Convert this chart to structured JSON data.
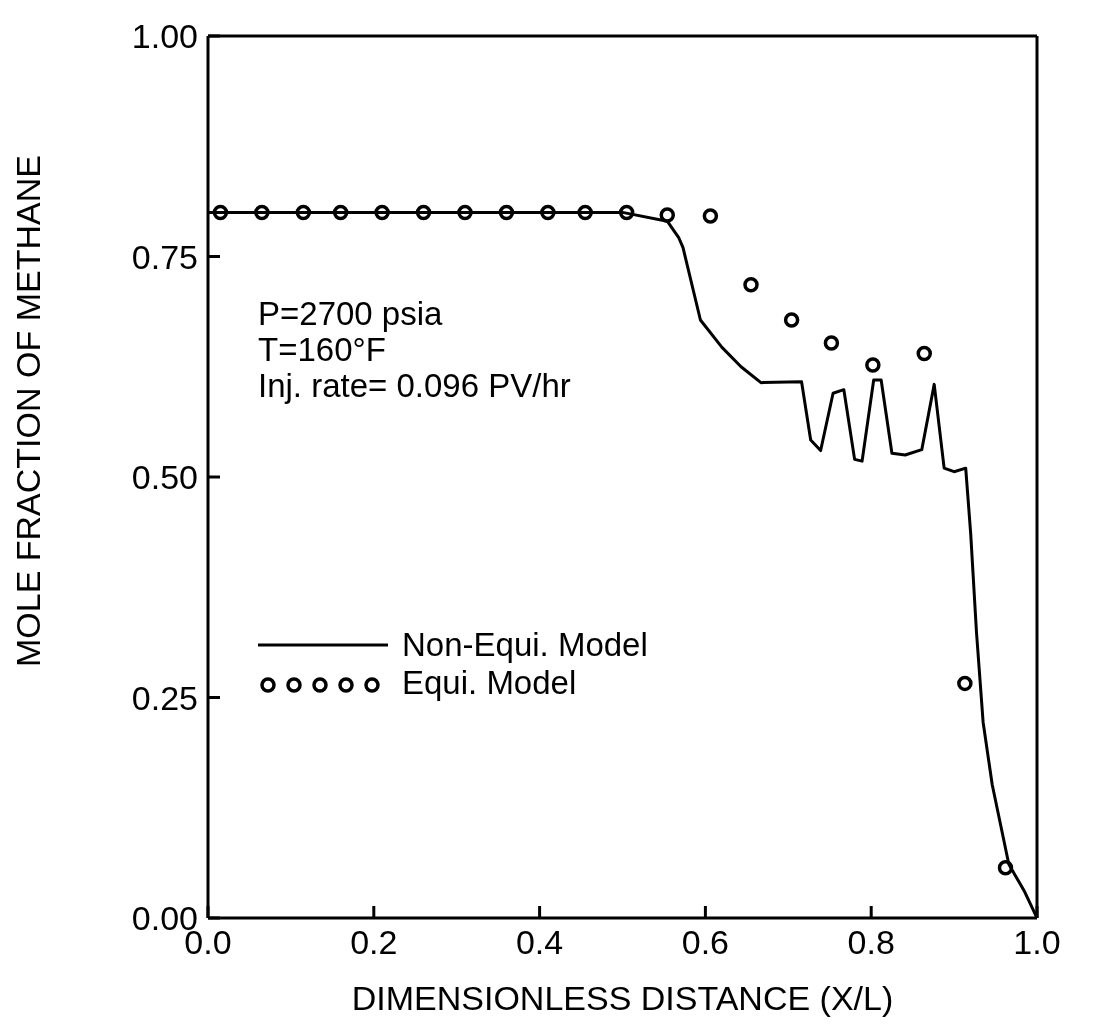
{
  "chart_data": {
    "type": "line",
    "xlabel": "DIMENSIONLESS DISTANCE (X/L)",
    "ylabel": "MOLE FRACTION OF METHANE",
    "xlim": [
      0,
      1
    ],
    "ylim": [
      0,
      1
    ],
    "xticks": [
      {
        "value": 0,
        "label": "0.0"
      },
      {
        "value": 0.2,
        "label": "0.2"
      },
      {
        "value": 0.4,
        "label": "0.4"
      },
      {
        "value": 0.6,
        "label": "0.6"
      },
      {
        "value": 0.8,
        "label": "0.8"
      },
      {
        "value": 1,
        "label": "1.0"
      }
    ],
    "yticks": [
      {
        "value": 0,
        "label": "0.00"
      },
      {
        "value": 0.25,
        "label": "0.25"
      },
      {
        "value": 0.5,
        "label": "0.50"
      },
      {
        "value": 0.75,
        "label": "0.75"
      },
      {
        "value": 1,
        "label": "1.00"
      }
    ],
    "grid": false,
    "legend": "bottom left",
    "annotations": [
      "P=2700 psia",
      "T=160°F",
      "Inj. rate= 0.096 PV/hr"
    ],
    "series": [
      {
        "name": "Non-Equi. Model",
        "color": "#000000",
        "marker": "none",
        "line_style": "solid",
        "x": [
          0,
          0.1,
          0.2,
          0.3,
          0.4,
          0.5,
          0.554,
          0.568,
          0.573,
          0.594,
          0.62,
          0.643,
          0.667,
          0.716,
          0.727,
          0.739,
          0.754,
          0.767,
          0.78,
          0.789,
          0.803,
          0.812,
          0.825,
          0.841,
          0.861,
          0.876,
          0.888,
          0.9,
          0.914,
          0.92,
          0.927,
          0.935,
          0.946,
          0.966,
          0.985,
          1.0
        ],
        "values": [
          0.8,
          0.8,
          0.8,
          0.8,
          0.8,
          0.8,
          0.79,
          0.771,
          0.76,
          0.678,
          0.647,
          0.625,
          0.607,
          0.608,
          0.542,
          0.53,
          0.595,
          0.599,
          0.52,
          0.518,
          0.61,
          0.61,
          0.527,
          0.525,
          0.531,
          0.605,
          0.51,
          0.506,
          0.51,
          0.436,
          0.324,
          0.222,
          0.151,
          0.061,
          0.03,
          0.0
        ]
      },
      {
        "name": "Equi. Model",
        "type": "scatter",
        "color": "#000000",
        "marker": "circle",
        "x": [
          0.015,
          0.065,
          0.115,
          0.16,
          0.21,
          0.26,
          0.31,
          0.36,
          0.41,
          0.455,
          0.505,
          0.554,
          0.606,
          0.655,
          0.704,
          0.752,
          0.802,
          0.864,
          0.913,
          0.962
        ],
        "values": [
          0.8,
          0.8,
          0.8,
          0.8,
          0.8,
          0.8,
          0.8,
          0.8,
          0.8,
          0.8,
          0.8,
          0.797,
          0.796,
          0.718,
          0.678,
          0.652,
          0.627,
          0.64,
          0.266,
          0.057
        ]
      }
    ]
  }
}
